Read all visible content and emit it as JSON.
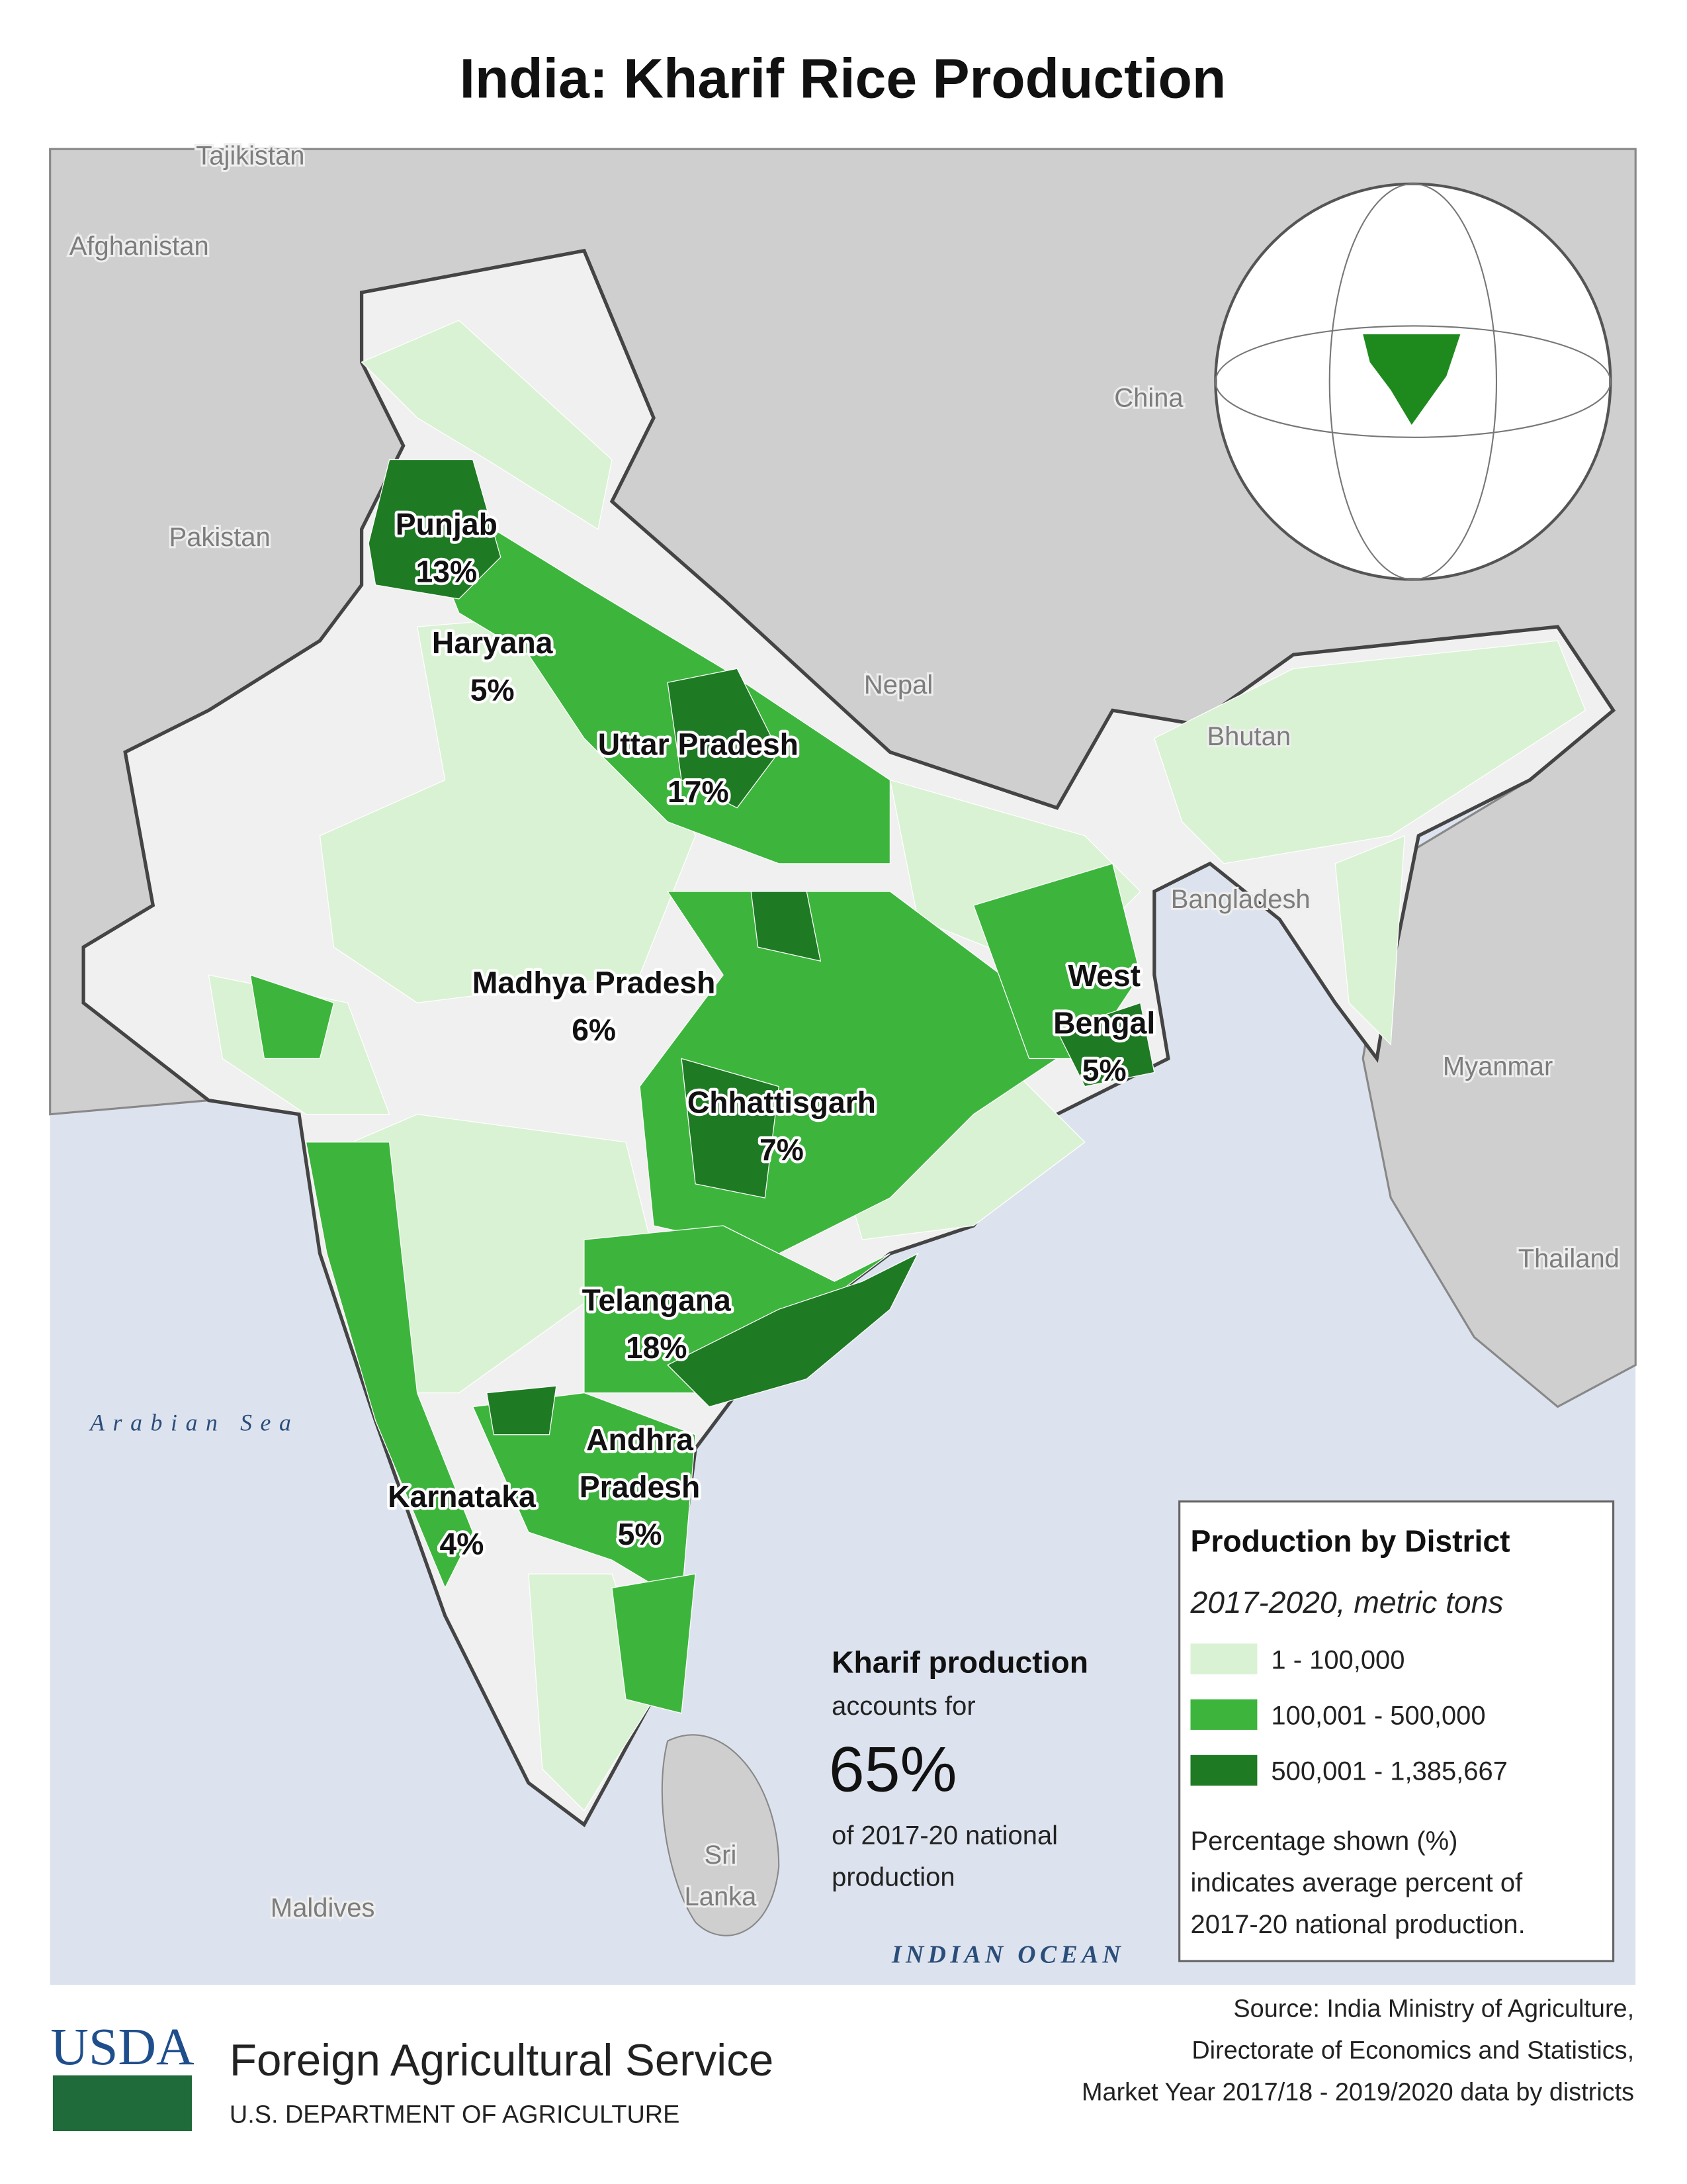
{
  "title": "India: Kharif Rice Production",
  "map": {
    "country_labels": [
      [
        "Tajikistan"
      ],
      [
        "Afghanistan"
      ],
      [
        "Pakistan"
      ],
      [
        "China"
      ],
      [
        "Nepal"
      ],
      [
        "Bhutan"
      ],
      [
        "Bangladesh"
      ],
      [
        "Myanmar"
      ],
      [
        "Thailand"
      ],
      [
        "Sri",
        "Lanka"
      ],
      [
        "Maldives"
      ]
    ],
    "sea_labels": [
      "Arabian Sea",
      "INDIAN OCEAN"
    ],
    "state_labels": [
      {
        "lines": [
          "Punjab"
        ],
        "percent": "13%"
      },
      {
        "lines": [
          "Haryana"
        ],
        "percent": "5%"
      },
      {
        "lines": [
          "Uttar Pradesh"
        ],
        "percent": "17%"
      },
      {
        "lines": [
          "Madhya Pradesh"
        ],
        "percent": "6%"
      },
      {
        "lines": [
          "West",
          "Bengal"
        ],
        "percent": "5%"
      },
      {
        "lines": [
          "Chhattisgarh"
        ],
        "percent": "7%"
      },
      {
        "lines": [
          "Telangana"
        ],
        "percent": "18%"
      },
      {
        "lines": [
          "Andhra",
          "Pradesh"
        ],
        "percent": "5%"
      },
      {
        "lines": [
          "Karnataka"
        ],
        "percent": "4%"
      }
    ]
  },
  "legend": {
    "title": "Production by District",
    "subtitle": "2017-2020, metric tons",
    "classes": [
      {
        "label": "1 - 100,000",
        "color": "#d9f2d3"
      },
      {
        "label": "100,001 - 500,000",
        "color": "#3db53d"
      },
      {
        "label": "500,001 - 1,385,667",
        "color": "#1f7a24"
      }
    ],
    "note": [
      "Percentage shown (%)",
      "indicates average percent of",
      "2017-20 national production."
    ]
  },
  "callout": {
    "heading": "Kharif production",
    "lines_before": [
      "accounts for"
    ],
    "value": "65%",
    "lines_after": [
      "of 2017-20 national",
      "production"
    ]
  },
  "footer": {
    "logo": "USDA",
    "org": "Foreign Agricultural Service",
    "dept": "U.S. DEPARTMENT OF AGRICULTURE",
    "source": [
      "Source: India Ministry of Agriculture,",
      "Directorate of Economics and Statistics,",
      "Market Year 2017/18 - 2019/2020 data by districts"
    ]
  }
}
